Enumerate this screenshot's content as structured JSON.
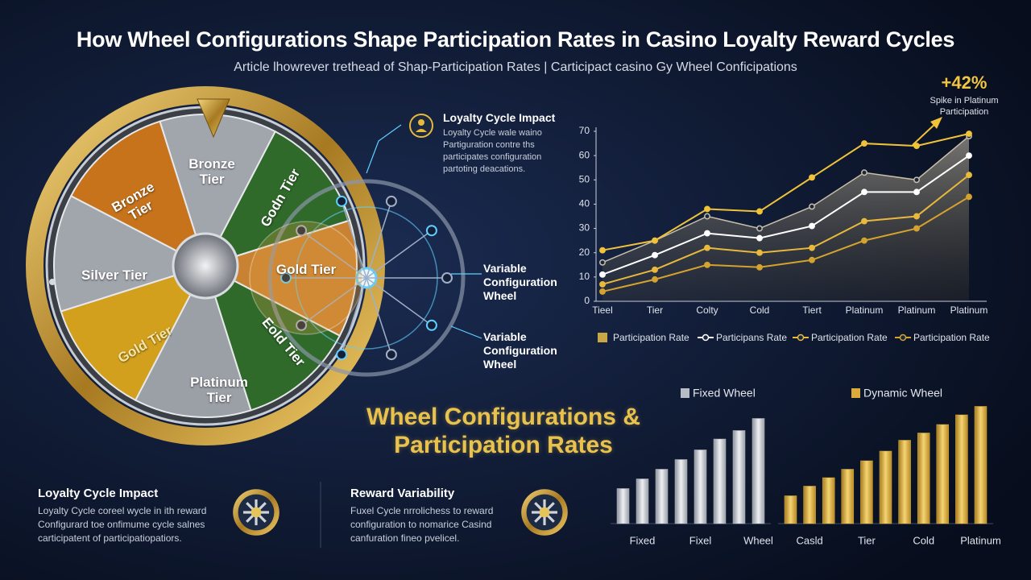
{
  "header": {
    "title": "How Wheel Configurations Shape Participation Rates in Casino Loyalty Reward Cycles",
    "subtitle": "Article lhowrever trethead of Shap-Participation Rates | Carticipact casino Gy Wheel Conficipations"
  },
  "wheel": {
    "segments": [
      "Bronze Tier",
      "Godn Tier",
      "Gold Tier",
      "Eold Tier",
      "Platinum Tier",
      "Gold Tier",
      "Silver Tier",
      "Bronze Tier"
    ]
  },
  "callouts": [
    {
      "title": "Loyalty Cycle Impact",
      "body": "Loyalty Cycle wale waino Partiguration contre ths participates configuration partoting deacations."
    },
    {
      "title": "Variable Configuration Wheel"
    },
    {
      "title": "Variable Configuration Wheel"
    }
  ],
  "feature_title": "Wheel Configurations & Participation Rates",
  "cards": [
    {
      "title": "Loyalty Cycle Impact",
      "body": "Loyalty Cycle coreel wycle in ith reward Configurard toe onfimume cycle salnes carticipatent of participatiopatiors."
    },
    {
      "title": "Reward Variability",
      "body": "Fuxel Cycle nrrolichess to reward configuration to nomarice Casind canfuration fineo pvelicel."
    }
  ],
  "chart_data": [
    {
      "type": "line",
      "categories": [
        "Tieel",
        "Tier",
        "Colty",
        "Cold",
        "Tiert",
        "Platinum",
        "Platinum",
        "Platinum"
      ],
      "ylim": [
        0,
        70
      ],
      "yticks": [
        0,
        10,
        20,
        30,
        40,
        50,
        60,
        70
      ],
      "series": [
        {
          "name": "Participation Rate",
          "style": "area",
          "color": "#c9bfa8",
          "values": [
            16,
            25,
            35,
            30,
            39,
            53,
            50,
            68
          ]
        },
        {
          "name": "Participans Rate",
          "style": "line",
          "color": "#ffffff",
          "values": [
            11,
            19,
            28,
            26,
            31,
            45,
            45,
            60
          ]
        },
        {
          "name": "Participation Rate",
          "style": "line",
          "color": "#e8b93c",
          "values": [
            7,
            13,
            22,
            20,
            22,
            33,
            35,
            52
          ]
        },
        {
          "name": "Participation Rate",
          "style": "line",
          "color": "#d4a22e",
          "values": [
            4,
            9,
            15,
            14,
            17,
            25,
            30,
            43
          ]
        },
        {
          "style": "line",
          "color": "#f0c23a",
          "values": [
            21,
            25,
            38,
            37,
            51,
            65,
            64,
            69
          ]
        }
      ],
      "annotation": {
        "text": "+42%",
        "note": "Spike in Platinum Participation"
      }
    },
    {
      "type": "bar",
      "categories": [
        null,
        "Fixed",
        null,
        null,
        "Fixel",
        null,
        null,
        "Wheel"
      ],
      "series": [
        {
          "name": "Fixed Wheel",
          "color": "#b8bcc4",
          "values": [
            29,
            37,
            45,
            53,
            61,
            70,
            77,
            87
          ]
        }
      ]
    },
    {
      "type": "bar",
      "categories": [
        null,
        "Casld",
        null,
        null,
        "Tier",
        null,
        null,
        "Cold",
        null,
        null,
        "Platinum"
      ],
      "series": [
        {
          "name": "Dynamic Wheel",
          "color": "#d9ab3a",
          "values": [
            23,
            31,
            38,
            45,
            52,
            60,
            69,
            75,
            82,
            90,
            97
          ]
        }
      ]
    }
  ]
}
